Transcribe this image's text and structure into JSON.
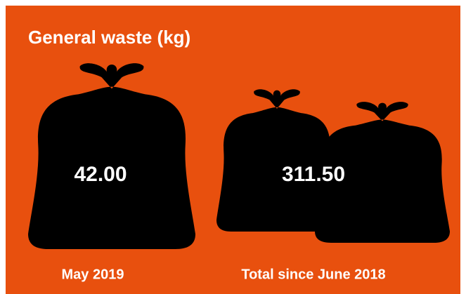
{
  "title": "General waste (kg)",
  "panels": [
    {
      "value": "42.00",
      "label": "May 2019"
    },
    {
      "value": "311.50",
      "label": "Total since June 2018"
    }
  ]
}
